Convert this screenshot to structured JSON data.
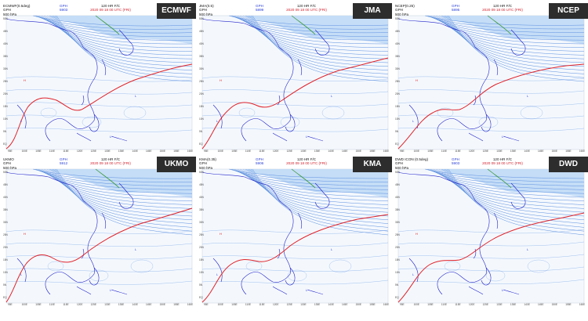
{
  "common": {
    "variable": "GPH",
    "level": "500 hPa",
    "forecast": "120 HR F/C",
    "valid_time": "2020 09 18 00 UTC (FRI)",
    "initial_label": "Initial Time",
    "initial_time": "2020 09 13 00 UTC",
    "lat_labels": [
      "50N",
      "45N",
      "40N",
      "35N",
      "30N",
      "25N",
      "20N",
      "15N",
      "10N",
      "5N",
      "EQ"
    ],
    "lon_labels": [
      "95E",
      "100E",
      "105E",
      "110E",
      "115E",
      "120E",
      "125E",
      "130E",
      "135E",
      "140E",
      "145E",
      "150E",
      "155E",
      "160E"
    ],
    "colors": {
      "contour": "#5b8fe0",
      "fill": "#bcd8f6",
      "ridge": "#e0232a",
      "trough": "#3a9a3a",
      "coast": "#2020c8",
      "header_bg": "#2d2d2d"
    }
  },
  "panels": [
    {
      "model": "ECMWF",
      "source": "ECMWF(0.5deg)",
      "max_value": "5903"
    },
    {
      "model": "JMA",
      "source": "JMA(0.5)",
      "max_value": "5899"
    },
    {
      "model": "NCEP",
      "source": "NCEP(0.25)",
      "max_value": "5895"
    },
    {
      "model": "UKMO",
      "source": "UKMO",
      "max_value": "5912"
    },
    {
      "model": "KMA",
      "source": "KMA(0.35)",
      "max_value": "5906"
    },
    {
      "model": "DWD",
      "source": "DWD ICON (0.5deg)",
      "max_value": "5903"
    }
  ]
}
